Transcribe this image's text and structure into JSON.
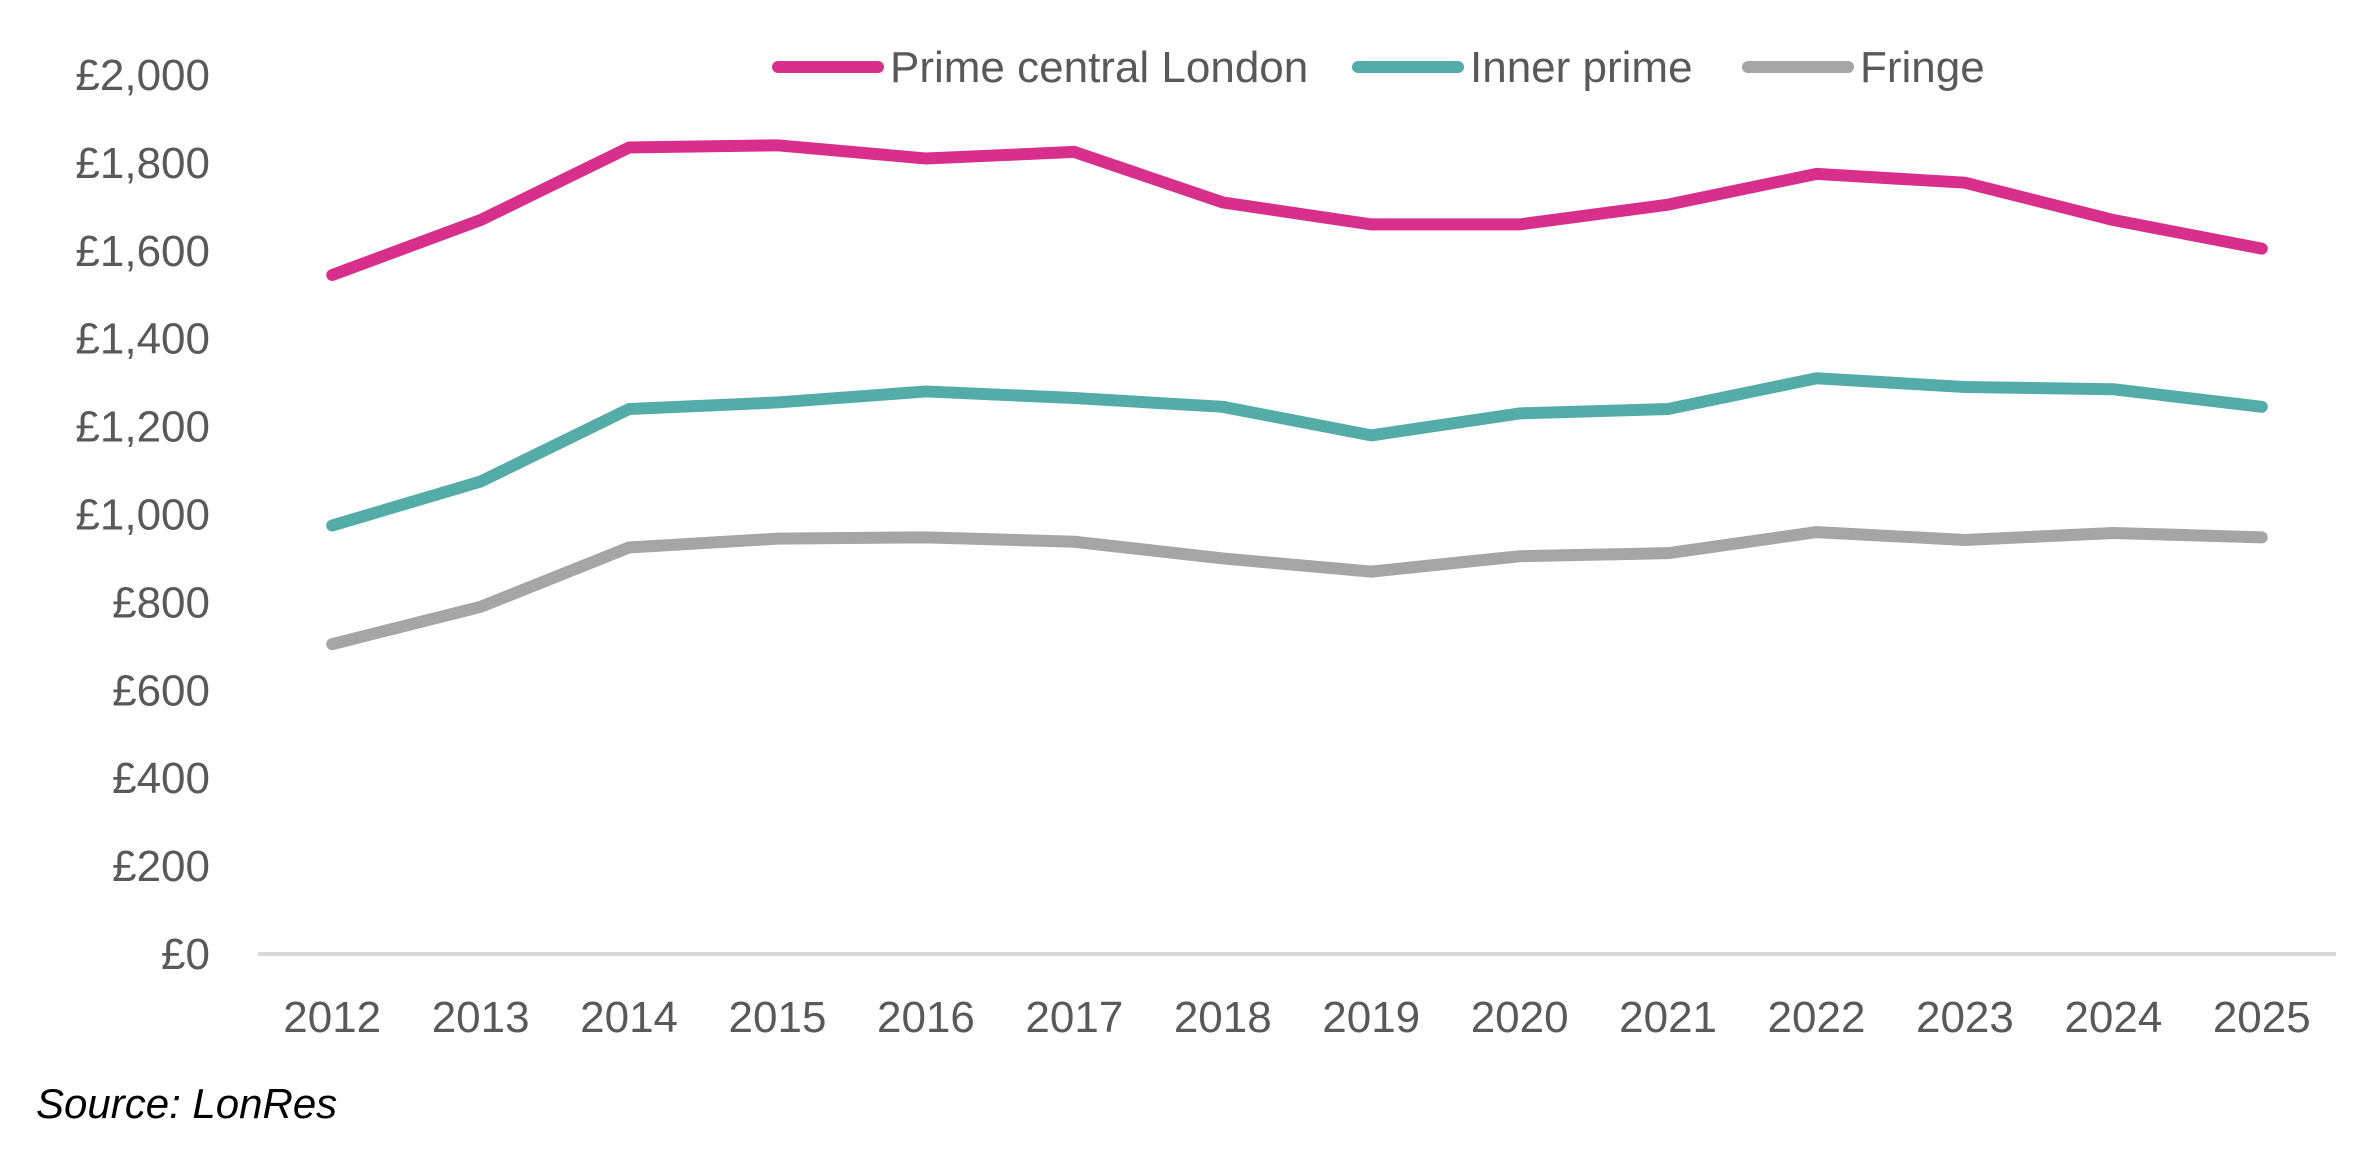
{
  "chart_data": {
    "type": "line",
    "title": "",
    "xlabel": "",
    "ylabel": "",
    "x": [
      "2012",
      "2013",
      "2014",
      "2015",
      "2016",
      "2017",
      "2018",
      "2019",
      "2020",
      "2021",
      "2022",
      "2023",
      "2024",
      "2025"
    ],
    "ylim": [
      0,
      2000
    ],
    "yticks": [
      0,
      200,
      400,
      600,
      800,
      1000,
      1200,
      1400,
      1600,
      1800,
      2000
    ],
    "ytick_labels": [
      "£0",
      "£200",
      "£400",
      "£600",
      "£800",
      "£1,000",
      "£1,200",
      "£1,400",
      "£1,600",
      "£1,800",
      "£2,000"
    ],
    "grid": false,
    "legend_position": "top",
    "series": [
      {
        "name": "Prime central London",
        "color": "#D82F8C",
        "values": [
          1545,
          1670,
          1835,
          1840,
          1810,
          1825,
          1710,
          1660,
          1660,
          1705,
          1775,
          1755,
          1670,
          1605
        ]
      },
      {
        "name": "Inner prime",
        "color": "#54ACA8",
        "values": [
          975,
          1075,
          1240,
          1255,
          1280,
          1265,
          1245,
          1180,
          1230,
          1240,
          1310,
          1290,
          1285,
          1245
        ]
      },
      {
        "name": "Fringe",
        "color": "#A5A5A5",
        "values": [
          705,
          790,
          925,
          945,
          948,
          938,
          900,
          870,
          905,
          912,
          960,
          942,
          958,
          948
        ]
      }
    ]
  },
  "source": "Source: LonRes",
  "colors": {
    "axis_line": "#D9D9D9",
    "tick_text": "#595959"
  }
}
